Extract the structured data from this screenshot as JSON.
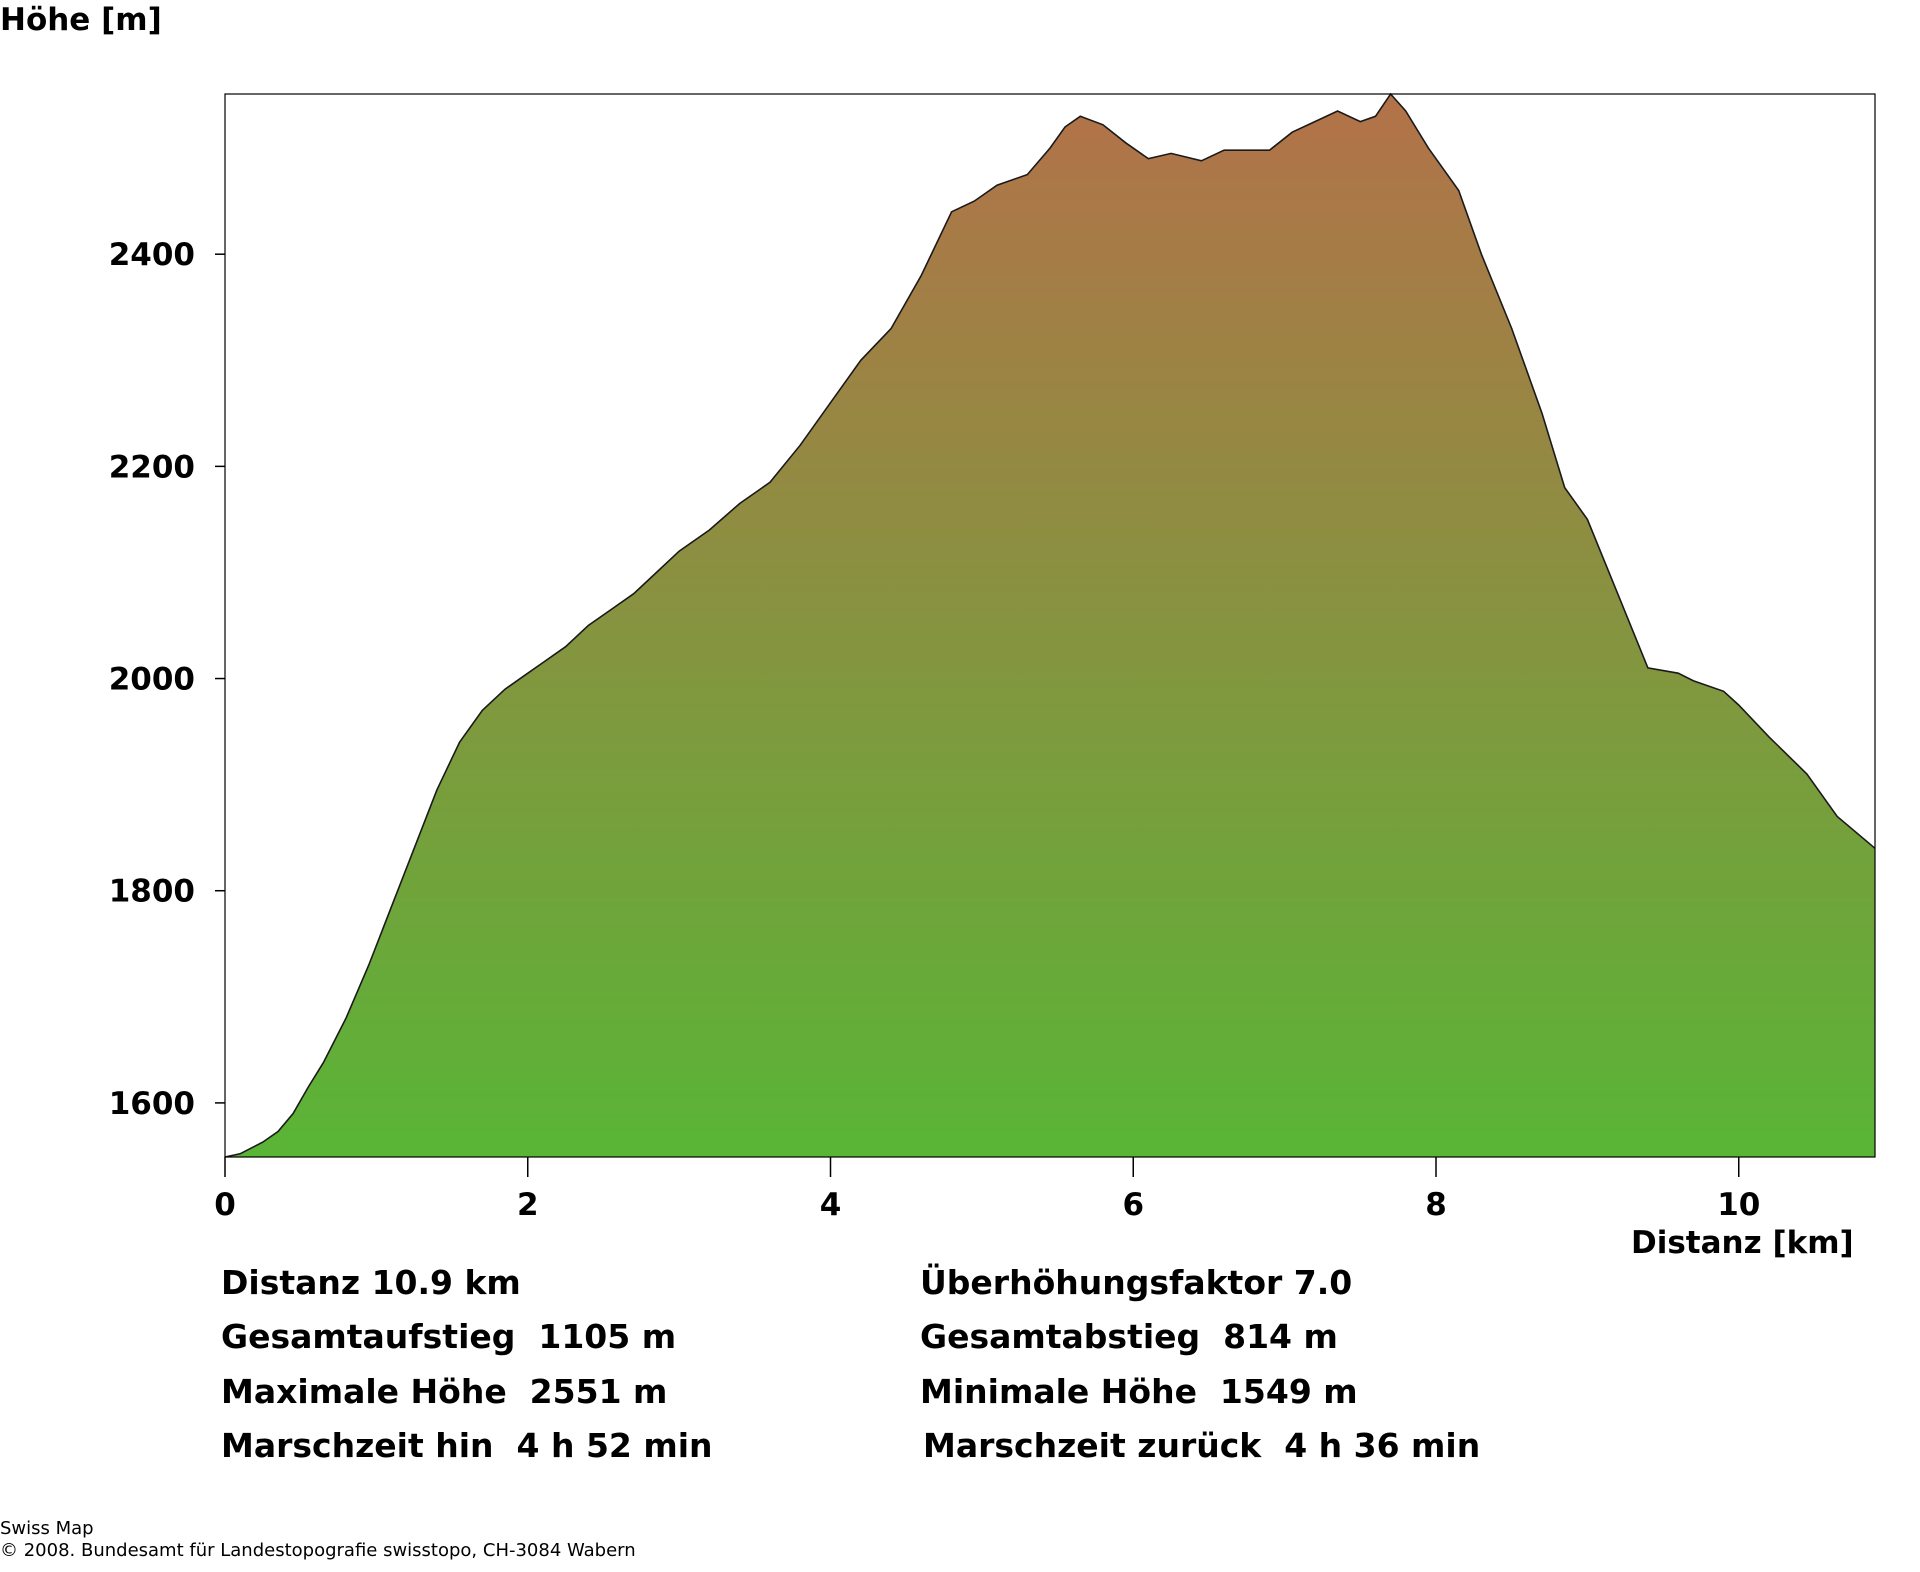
{
  "chart_data": {
    "type": "area",
    "title": "",
    "xlabel": "Distanz [km]",
    "ylabel": "Höhe [m]",
    "xlim": [
      0,
      10.9
    ],
    "ylim": [
      1549,
      2551
    ],
    "x_ticks": [
      0,
      2,
      4,
      6,
      8,
      10
    ],
    "y_ticks": [
      1600,
      1800,
      2000,
      2200,
      2400
    ],
    "grid": false,
    "colors": {
      "low": "#59b536",
      "high": "#b37249",
      "outline": "#1a1a1a"
    },
    "series": [
      {
        "x": [
          0,
          0.1,
          0.25,
          0.35,
          0.45,
          0.55,
          0.65,
          0.8,
          0.95,
          1.1,
          1.25,
          1.4,
          1.55,
          1.7,
          1.85,
          2.0,
          2.1,
          2.25,
          2.4,
          2.55,
          2.7,
          2.85,
          3.0,
          3.2,
          3.4,
          3.6,
          3.8,
          4.0,
          4.2,
          4.4,
          4.6,
          4.8,
          4.95,
          5.1,
          5.3,
          5.45,
          5.55,
          5.65,
          5.8,
          5.95,
          6.1,
          6.25,
          6.45,
          6.6,
          6.9,
          7.05,
          7.2,
          7.35,
          7.5,
          7.6,
          7.7,
          7.8,
          7.95,
          8.15,
          8.3,
          8.5,
          8.7,
          8.85,
          9.0,
          9.2,
          9.4,
          9.6,
          9.7,
          9.9,
          10.0,
          10.2,
          10.45,
          10.65,
          10.9
        ],
        "y": [
          1549,
          1552,
          1563,
          1573,
          1590,
          1615,
          1638,
          1680,
          1730,
          1785,
          1840,
          1895,
          1940,
          1970,
          1990,
          2005,
          2015,
          2030,
          2050,
          2065,
          2080,
          2100,
          2120,
          2140,
          2165,
          2185,
          2220,
          2260,
          2300,
          2330,
          2380,
          2440,
          2450,
          2465,
          2475,
          2500,
          2520,
          2530,
          2522,
          2505,
          2490,
          2495,
          2488,
          2498,
          2498,
          2515,
          2525,
          2535,
          2525,
          2530,
          2551,
          2535,
          2500,
          2460,
          2400,
          2330,
          2250,
          2180,
          2150,
          2080,
          2010,
          2005,
          1998,
          1988,
          1975,
          1945,
          1910,
          1870,
          1840
        ]
      }
    ]
  },
  "stats": {
    "distanz": "Distanz 10.9 km",
    "ueberhoehung": "Überhöhungsfaktor 7.0",
    "gesamtaufstieg": "Gesamtaufstieg  1105 m",
    "gesamtabstieg": "Gesamtabstieg  814 m",
    "max_hoehe": "Maximale Höhe  2551 m",
    "min_hoehe": "Minimale Höhe  1549 m",
    "marschzeit_hin": "Marschzeit hin  4 h 52 min",
    "marschzeit_zurueck": "Marschzeit zurück  4 h 36 min"
  },
  "footer": {
    "line1": "Swiss Map",
    "line2": "© 2008. Bundesamt für Landestopografie swisstopo, CH-3084 Wabern"
  }
}
